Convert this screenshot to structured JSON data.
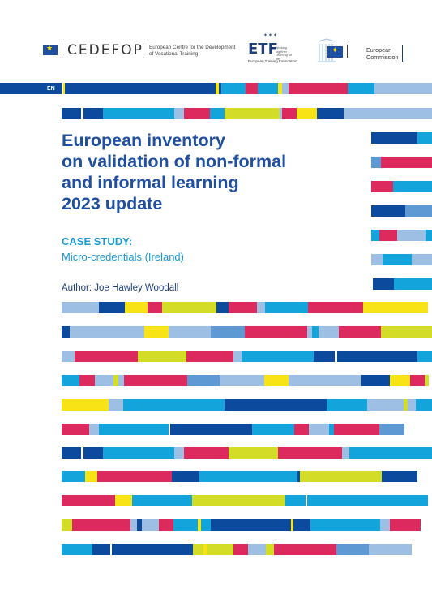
{
  "header": {
    "cedefop_name": "CEDEFOP",
    "cedefop_desc": "European Centre for the Development\nof Vocational Training",
    "etf_name": "ETF",
    "etf_tagline": "Working together Learning for life",
    "etf_full": "European Training Foundation",
    "ec_text": "European\nCommission"
  },
  "language_label": "EN",
  "cover": {
    "title": "European inventory\non validation of non-formal\nand informal learning\n2023 update",
    "case_heading": "CASE STUDY:",
    "case_subtitle": "Micro-credentials (Ireland)",
    "author": "Author: Joe Hawley Woodall"
  },
  "colors": {
    "navy": "#0b4a9c",
    "cyan": "#13a4dc",
    "light_blue": "#9cbfe3",
    "mid_blue": "#5f99d4",
    "magenta": "#dc2a5f",
    "lime": "#d3dc26",
    "yellow": "#f7e316"
  }
}
